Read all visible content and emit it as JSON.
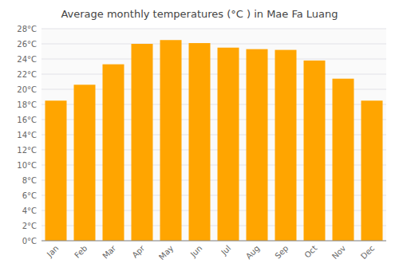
{
  "chart_data": {
    "type": "bar",
    "title": "Average monthly temperatures (°C ) in Mae Fa Luang",
    "categories": [
      "Jan",
      "Feb",
      "Mar",
      "Apr",
      "May",
      "Jun",
      "Jul",
      "Aug",
      "Sep",
      "Oct",
      "Nov",
      "Dec"
    ],
    "values": [
      18.5,
      20.6,
      23.3,
      26.0,
      26.5,
      26.1,
      25.5,
      25.3,
      25.2,
      23.8,
      21.4,
      18.5
    ],
    "color": "#FFA500",
    "ylim": [
      0,
      28
    ],
    "yticks": [
      {
        "value": 0,
        "label": "0°C"
      },
      {
        "value": 2,
        "label": "2°C"
      },
      {
        "value": 4,
        "label": "4°C"
      },
      {
        "value": 6,
        "label": "6°C"
      },
      {
        "value": 8,
        "label": "8°C"
      },
      {
        "value": 10,
        "label": "10°C"
      },
      {
        "value": 12,
        "label": "12°C"
      },
      {
        "value": 14,
        "label": "14°C"
      },
      {
        "value": 16,
        "label": "16°C"
      },
      {
        "value": 18,
        "label": "18°C"
      },
      {
        "value": 20,
        "label": "20°C"
      },
      {
        "value": 22,
        "label": "22°C"
      },
      {
        "value": 24,
        "label": "24°C"
      },
      {
        "value": 26,
        "label": "26°C"
      },
      {
        "value": 28,
        "label": "28°C"
      }
    ],
    "grid": true
  }
}
